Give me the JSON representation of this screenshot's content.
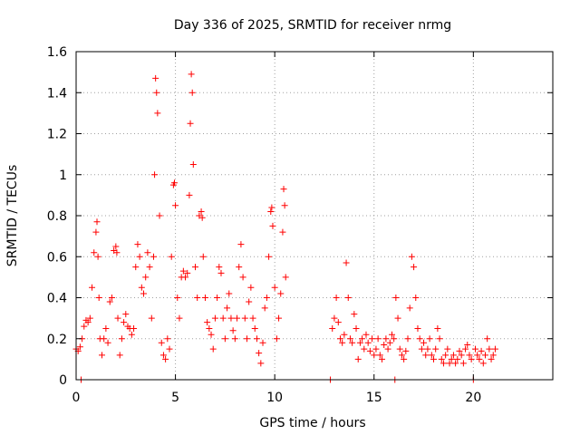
{
  "chart_data": {
    "type": "scatter",
    "title": "Day 336 of 2025, SRMTID for receiver nrmg",
    "xlabel": "GPS time / hours",
    "ylabel": "SRMTID / TECUs",
    "xlim": [
      0,
      24
    ],
    "ylim": [
      0,
      1.6
    ],
    "xticks": [
      0,
      5,
      10,
      15,
      20
    ],
    "yticks": [
      0,
      0.2,
      0.4,
      0.6,
      0.8,
      1,
      1.2,
      1.4,
      1.6
    ],
    "xtick_labels": [
      "0",
      "5",
      "10",
      "15",
      "20"
    ],
    "ytick_labels": [
      "0",
      "0.2",
      "0.4",
      "0.6",
      "0.8",
      "1",
      "1.2",
      "1.4",
      "1.6"
    ],
    "grid": true,
    "marker": "+",
    "color": "#ff0000",
    "series": [
      {
        "name": "SRMTID",
        "points": [
          [
            0.0,
            0.15
          ],
          [
            0.1,
            0.14
          ],
          [
            0.2,
            0.16
          ],
          [
            0.25,
            0.0
          ],
          [
            0.3,
            0.2
          ],
          [
            0.4,
            0.26
          ],
          [
            0.5,
            0.29
          ],
          [
            0.6,
            0.28
          ],
          [
            0.7,
            0.3
          ],
          [
            0.8,
            0.45
          ],
          [
            0.9,
            0.62
          ],
          [
            1.0,
            0.72
          ],
          [
            1.05,
            0.77
          ],
          [
            1.1,
            0.6
          ],
          [
            1.15,
            0.4
          ],
          [
            1.2,
            0.2
          ],
          [
            1.3,
            0.12
          ],
          [
            1.4,
            0.2
          ],
          [
            1.5,
            0.25
          ],
          [
            1.6,
            0.18
          ],
          [
            1.7,
            0.38
          ],
          [
            1.8,
            0.4
          ],
          [
            1.9,
            0.63
          ],
          [
            2.0,
            0.65
          ],
          [
            2.05,
            0.62
          ],
          [
            2.1,
            0.3
          ],
          [
            2.2,
            0.12
          ],
          [
            2.3,
            0.2
          ],
          [
            2.4,
            0.28
          ],
          [
            2.5,
            0.32
          ],
          [
            2.6,
            0.26
          ],
          [
            2.7,
            0.25
          ],
          [
            2.8,
            0.22
          ],
          [
            2.9,
            0.25
          ],
          [
            3.0,
            0.55
          ],
          [
            3.1,
            0.66
          ],
          [
            3.2,
            0.6
          ],
          [
            3.3,
            0.45
          ],
          [
            3.4,
            0.42
          ],
          [
            3.5,
            0.5
          ],
          [
            3.6,
            0.62
          ],
          [
            3.7,
            0.55
          ],
          [
            3.8,
            0.3
          ],
          [
            3.9,
            0.6
          ],
          [
            3.95,
            1.0
          ],
          [
            4.0,
            1.47
          ],
          [
            4.05,
            1.4
          ],
          [
            4.1,
            1.3
          ],
          [
            4.2,
            0.8
          ],
          [
            4.3,
            0.18
          ],
          [
            4.4,
            0.12
          ],
          [
            4.5,
            0.1
          ],
          [
            4.6,
            0.2
          ],
          [
            4.7,
            0.15
          ],
          [
            4.8,
            0.6
          ],
          [
            4.9,
            0.95
          ],
          [
            4.95,
            0.96
          ],
          [
            5.0,
            0.85
          ],
          [
            5.1,
            0.4
          ],
          [
            5.2,
            0.3
          ],
          [
            5.3,
            0.5
          ],
          [
            5.4,
            0.53
          ],
          [
            5.5,
            0.5
          ],
          [
            5.6,
            0.52
          ],
          [
            5.7,
            0.9
          ],
          [
            5.75,
            1.25
          ],
          [
            5.8,
            1.49
          ],
          [
            5.85,
            1.4
          ],
          [
            5.9,
            1.05
          ],
          [
            6.0,
            0.55
          ],
          [
            6.1,
            0.4
          ],
          [
            6.2,
            0.8
          ],
          [
            6.3,
            0.82
          ],
          [
            6.35,
            0.79
          ],
          [
            6.4,
            0.6
          ],
          [
            6.5,
            0.4
          ],
          [
            6.6,
            0.28
          ],
          [
            6.7,
            0.25
          ],
          [
            6.8,
            0.22
          ],
          [
            6.9,
            0.15
          ],
          [
            7.0,
            0.3
          ],
          [
            7.1,
            0.4
          ],
          [
            7.2,
            0.55
          ],
          [
            7.3,
            0.52
          ],
          [
            7.4,
            0.3
          ],
          [
            7.5,
            0.2
          ],
          [
            7.6,
            0.35
          ],
          [
            7.7,
            0.42
          ],
          [
            7.8,
            0.3
          ],
          [
            7.9,
            0.24
          ],
          [
            8.0,
            0.2
          ],
          [
            8.1,
            0.3
          ],
          [
            8.2,
            0.55
          ],
          [
            8.3,
            0.66
          ],
          [
            8.4,
            0.5
          ],
          [
            8.5,
            0.3
          ],
          [
            8.6,
            0.2
          ],
          [
            8.7,
            0.38
          ],
          [
            8.8,
            0.45
          ],
          [
            8.9,
            0.3
          ],
          [
            9.0,
            0.25
          ],
          [
            9.1,
            0.2
          ],
          [
            9.2,
            0.13
          ],
          [
            9.3,
            0.08
          ],
          [
            9.4,
            0.18
          ],
          [
            9.5,
            0.35
          ],
          [
            9.6,
            0.4
          ],
          [
            9.7,
            0.6
          ],
          [
            9.8,
            0.82
          ],
          [
            9.85,
            0.84
          ],
          [
            9.9,
            0.75
          ],
          [
            10.0,
            0.45
          ],
          [
            10.1,
            0.2
          ],
          [
            10.2,
            0.3
          ],
          [
            10.3,
            0.42
          ],
          [
            10.4,
            0.72
          ],
          [
            10.45,
            0.93
          ],
          [
            10.5,
            0.85
          ],
          [
            10.55,
            0.5
          ],
          [
            12.8,
            0.0
          ],
          [
            12.9,
            0.25
          ],
          [
            13.0,
            0.3
          ],
          [
            13.1,
            0.4
          ],
          [
            13.2,
            0.28
          ],
          [
            13.3,
            0.2
          ],
          [
            13.4,
            0.18
          ],
          [
            13.5,
            0.22
          ],
          [
            13.6,
            0.57
          ],
          [
            13.7,
            0.4
          ],
          [
            13.8,
            0.2
          ],
          [
            13.9,
            0.18
          ],
          [
            14.0,
            0.32
          ],
          [
            14.1,
            0.25
          ],
          [
            14.2,
            0.1
          ],
          [
            14.3,
            0.18
          ],
          [
            14.4,
            0.2
          ],
          [
            14.5,
            0.15
          ],
          [
            14.6,
            0.22
          ],
          [
            14.7,
            0.18
          ],
          [
            14.8,
            0.14
          ],
          [
            14.9,
            0.2
          ],
          [
            15.0,
            0.12
          ],
          [
            15.1,
            0.15
          ],
          [
            15.2,
            0.2
          ],
          [
            15.3,
            0.12
          ],
          [
            15.4,
            0.1
          ],
          [
            15.5,
            0.17
          ],
          [
            15.6,
            0.2
          ],
          [
            15.7,
            0.15
          ],
          [
            15.8,
            0.18
          ],
          [
            15.9,
            0.22
          ],
          [
            16.0,
            0.2
          ],
          [
            16.05,
            0.0
          ],
          [
            16.1,
            0.4
          ],
          [
            16.2,
            0.3
          ],
          [
            16.3,
            0.15
          ],
          [
            16.4,
            0.12
          ],
          [
            16.5,
            0.1
          ],
          [
            16.6,
            0.14
          ],
          [
            16.7,
            0.2
          ],
          [
            16.8,
            0.35
          ],
          [
            16.9,
            0.6
          ],
          [
            17.0,
            0.55
          ],
          [
            17.1,
            0.4
          ],
          [
            17.2,
            0.25
          ],
          [
            17.3,
            0.2
          ],
          [
            17.4,
            0.15
          ],
          [
            17.5,
            0.18
          ],
          [
            17.6,
            0.12
          ],
          [
            17.7,
            0.15
          ],
          [
            17.8,
            0.2
          ],
          [
            17.9,
            0.12
          ],
          [
            18.0,
            0.1
          ],
          [
            18.1,
            0.15
          ],
          [
            18.2,
            0.25
          ],
          [
            18.3,
            0.2
          ],
          [
            18.4,
            0.1
          ],
          [
            18.5,
            0.08
          ],
          [
            18.6,
            0.12
          ],
          [
            18.7,
            0.15
          ],
          [
            18.8,
            0.08
          ],
          [
            18.9,
            0.1
          ],
          [
            19.0,
            0.12
          ],
          [
            19.1,
            0.08
          ],
          [
            19.2,
            0.1
          ],
          [
            19.3,
            0.14
          ],
          [
            19.4,
            0.12
          ],
          [
            19.5,
            0.08
          ],
          [
            19.6,
            0.15
          ],
          [
            19.7,
            0.17
          ],
          [
            19.8,
            0.12
          ],
          [
            19.9,
            0.1
          ],
          [
            20.0,
            0.0
          ],
          [
            20.1,
            0.15
          ],
          [
            20.2,
            0.12
          ],
          [
            20.3,
            0.1
          ],
          [
            20.4,
            0.14
          ],
          [
            20.5,
            0.08
          ],
          [
            20.6,
            0.12
          ],
          [
            20.7,
            0.2
          ],
          [
            20.8,
            0.15
          ],
          [
            20.9,
            0.1
          ],
          [
            21.0,
            0.12
          ],
          [
            21.1,
            0.15
          ]
        ]
      }
    ]
  }
}
